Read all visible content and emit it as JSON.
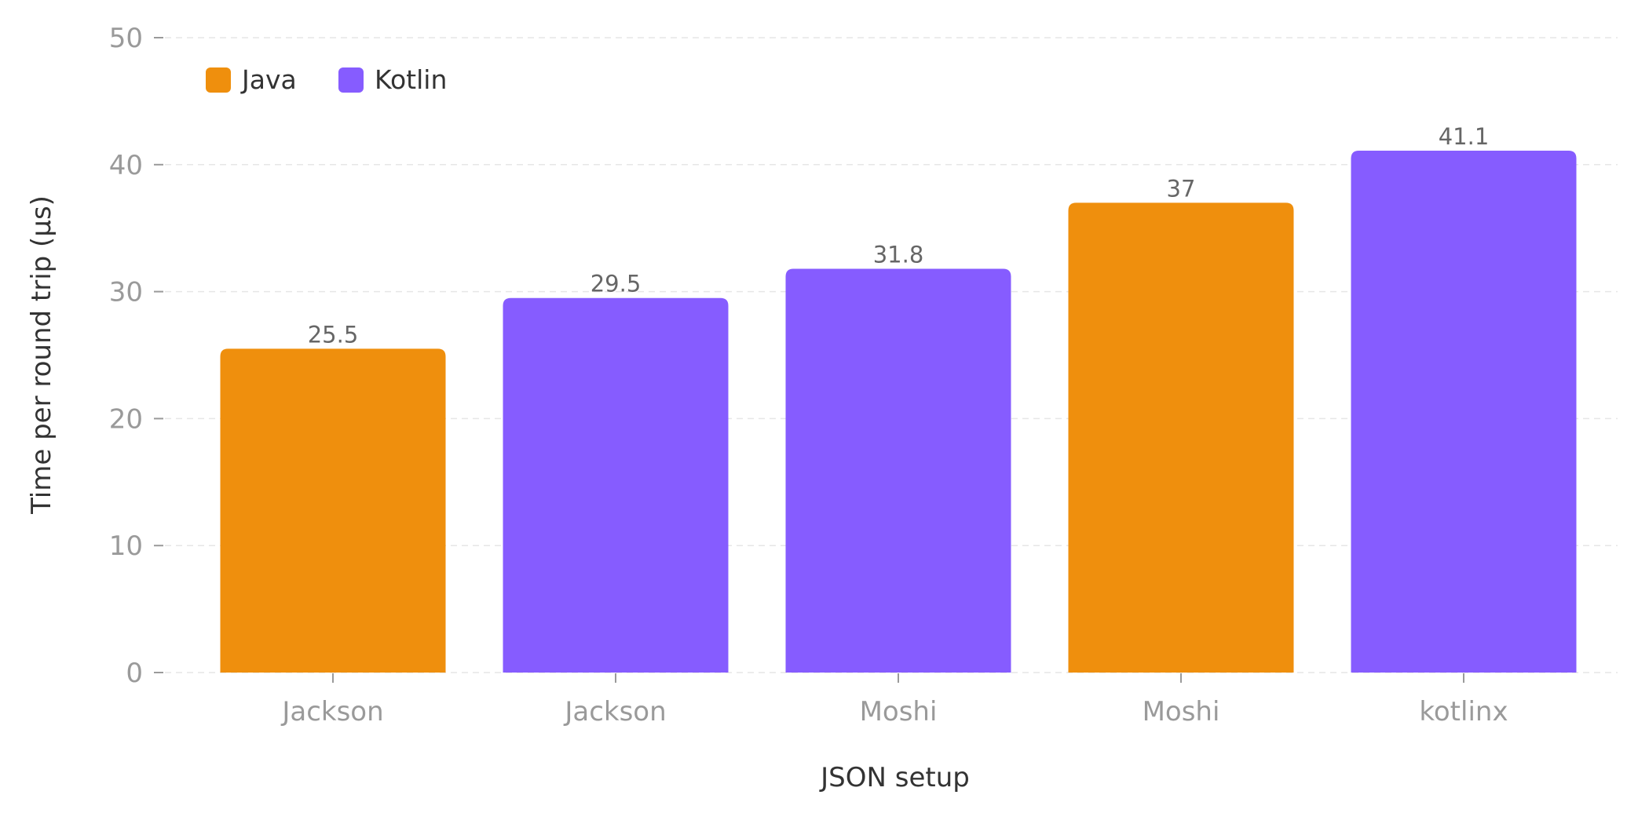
{
  "chart_data": {
    "type": "bar",
    "categories": [
      "Jackson",
      "Jackson",
      "Moshi",
      "Moshi",
      "kotlinx"
    ],
    "values": [
      25.5,
      29.5,
      31.8,
      37,
      41.1
    ],
    "value_labels": [
      "25.5",
      "29.5",
      "31.8",
      "37",
      "41.1"
    ],
    "bar_series": [
      "Java",
      "Kotlin",
      "Kotlin",
      "Java",
      "Kotlin"
    ],
    "series": [
      {
        "name": "Java",
        "color": "#ef8f0d"
      },
      {
        "name": "Kotlin",
        "color": "#865cff"
      }
    ],
    "title": "",
    "xlabel": "JSON setup",
    "ylabel": "Time per round trip (µs)",
    "ylim": [
      0,
      50
    ],
    "yticks": [
      0,
      10,
      20,
      30,
      40,
      50
    ],
    "grid": true,
    "legend_position": "top-left"
  }
}
